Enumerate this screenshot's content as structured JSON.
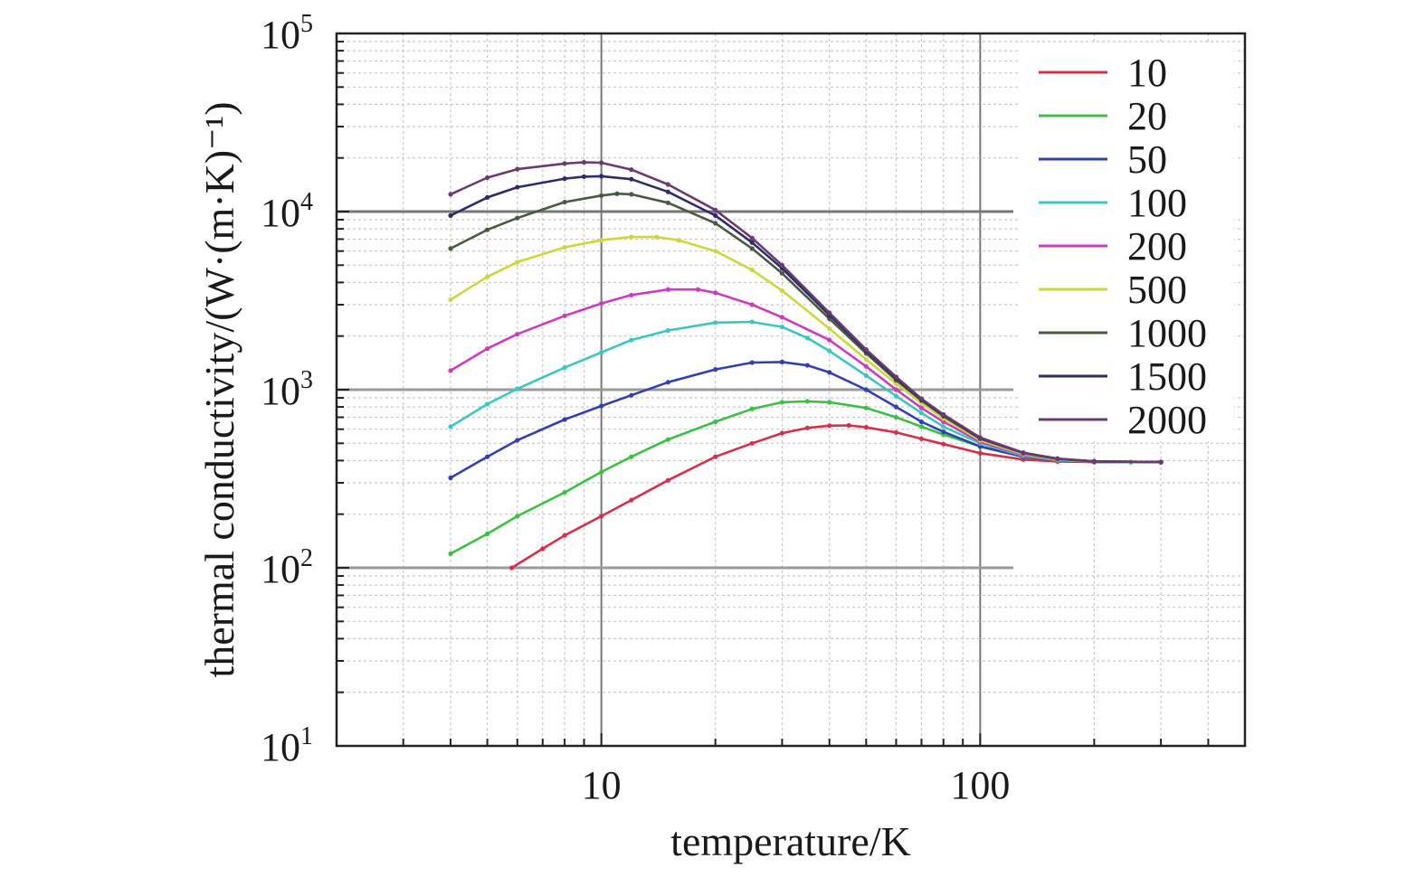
{
  "chart_data": {
    "type": "line",
    "xlabel": "temperature/K",
    "ylabel": "thermal conductivity/(W·(m·K)⁻¹)",
    "x_scale": "log",
    "y_scale": "log",
    "xlim": [
      2,
      500
    ],
    "ylim": [
      10,
      100000
    ],
    "grid": true,
    "legend_position": "top-right",
    "x_ticks": [
      {
        "value": 10,
        "label": "10"
      },
      {
        "value": 100,
        "label": "100"
      }
    ],
    "y_ticks": [
      {
        "value": 10,
        "base": "10",
        "exp": "1"
      },
      {
        "value": 100,
        "base": "10",
        "exp": "2"
      },
      {
        "value": 1000,
        "base": "10",
        "exp": "3"
      },
      {
        "value": 10000,
        "base": "10",
        "exp": "4"
      },
      {
        "value": 100000,
        "base": "10",
        "exp": "5"
      }
    ],
    "series": [
      {
        "name": "10",
        "color": "#d62f4a",
        "points": [
          [
            5.8,
            100
          ],
          [
            7,
            128
          ],
          [
            8,
            152
          ],
          [
            10,
            195
          ],
          [
            12,
            240
          ],
          [
            15,
            310
          ],
          [
            20,
            420
          ],
          [
            25,
            500
          ],
          [
            30,
            570
          ],
          [
            35,
            610
          ],
          [
            40,
            628
          ],
          [
            45,
            630
          ],
          [
            50,
            615
          ],
          [
            60,
            575
          ],
          [
            70,
            530
          ],
          [
            80,
            495
          ],
          [
            100,
            440
          ],
          [
            130,
            405
          ],
          [
            160,
            395
          ],
          [
            200,
            392
          ],
          [
            250,
            392
          ],
          [
            300,
            392
          ]
        ]
      },
      {
        "name": "20",
        "color": "#3cc043",
        "points": [
          [
            4,
            120
          ],
          [
            5,
            155
          ],
          [
            6,
            195
          ],
          [
            8,
            265
          ],
          [
            10,
            345
          ],
          [
            12,
            420
          ],
          [
            15,
            525
          ],
          [
            20,
            660
          ],
          [
            25,
            780
          ],
          [
            30,
            850
          ],
          [
            35,
            860
          ],
          [
            40,
            850
          ],
          [
            50,
            790
          ],
          [
            60,
            700
          ],
          [
            70,
            620
          ],
          [
            80,
            560
          ],
          [
            100,
            480
          ],
          [
            130,
            420
          ],
          [
            160,
            400
          ],
          [
            200,
            393
          ],
          [
            250,
            392
          ],
          [
            300,
            392
          ]
        ]
      },
      {
        "name": "50",
        "color": "#3340b0",
        "points": [
          [
            4,
            320
          ],
          [
            5,
            420
          ],
          [
            6,
            520
          ],
          [
            8,
            680
          ],
          [
            10,
            810
          ],
          [
            12,
            930
          ],
          [
            15,
            1100
          ],
          [
            20,
            1300
          ],
          [
            25,
            1420
          ],
          [
            30,
            1430
          ],
          [
            35,
            1370
          ],
          [
            40,
            1250
          ],
          [
            50,
            1000
          ],
          [
            60,
            800
          ],
          [
            70,
            660
          ],
          [
            80,
            580
          ],
          [
            100,
            480
          ],
          [
            130,
            420
          ],
          [
            160,
            400
          ],
          [
            200,
            393
          ],
          [
            300,
            392
          ]
        ]
      },
      {
        "name": "100",
        "color": "#3cc6c0",
        "points": [
          [
            4,
            620
          ],
          [
            5,
            830
          ],
          [
            6,
            1010
          ],
          [
            8,
            1330
          ],
          [
            10,
            1620
          ],
          [
            12,
            1900
          ],
          [
            15,
            2150
          ],
          [
            20,
            2380
          ],
          [
            25,
            2400
          ],
          [
            30,
            2250
          ],
          [
            35,
            1950
          ],
          [
            40,
            1650
          ],
          [
            50,
            1200
          ],
          [
            60,
            920
          ],
          [
            70,
            740
          ],
          [
            80,
            620
          ],
          [
            100,
            500
          ],
          [
            130,
            425
          ],
          [
            160,
            402
          ],
          [
            200,
            394
          ],
          [
            300,
            392
          ]
        ]
      },
      {
        "name": "200",
        "color": "#cc3cc0",
        "points": [
          [
            4,
            1280
          ],
          [
            5,
            1700
          ],
          [
            6,
            2050
          ],
          [
            8,
            2600
          ],
          [
            10,
            3050
          ],
          [
            12,
            3400
          ],
          [
            15,
            3650
          ],
          [
            18,
            3650
          ],
          [
            20,
            3500
          ],
          [
            25,
            3000
          ],
          [
            30,
            2550
          ],
          [
            40,
            1900
          ],
          [
            50,
            1350
          ],
          [
            60,
            1000
          ],
          [
            70,
            790
          ],
          [
            80,
            660
          ],
          [
            100,
            510
          ],
          [
            130,
            430
          ],
          [
            160,
            405
          ],
          [
            200,
            395
          ],
          [
            300,
            392
          ]
        ]
      },
      {
        "name": "500",
        "color": "#cbd83c",
        "points": [
          [
            4,
            3200
          ],
          [
            5,
            4300
          ],
          [
            6,
            5200
          ],
          [
            8,
            6300
          ],
          [
            10,
            6900
          ],
          [
            12,
            7200
          ],
          [
            14,
            7200
          ],
          [
            16,
            6900
          ],
          [
            20,
            6000
          ],
          [
            25,
            4700
          ],
          [
            30,
            3600
          ],
          [
            40,
            2200
          ],
          [
            50,
            1480
          ],
          [
            60,
            1080
          ],
          [
            70,
            840
          ],
          [
            80,
            690
          ],
          [
            100,
            520
          ],
          [
            130,
            435
          ],
          [
            160,
            405
          ],
          [
            200,
            395
          ],
          [
            300,
            392
          ]
        ]
      },
      {
        "name": "1000",
        "color": "#4a5a40",
        "points": [
          [
            4,
            6200
          ],
          [
            5,
            7900
          ],
          [
            6,
            9200
          ],
          [
            8,
            11300
          ],
          [
            10,
            12300
          ],
          [
            11,
            12600
          ],
          [
            12,
            12500
          ],
          [
            15,
            11200
          ],
          [
            20,
            8600
          ],
          [
            25,
            6200
          ],
          [
            30,
            4500
          ],
          [
            40,
            2500
          ],
          [
            50,
            1600
          ],
          [
            60,
            1130
          ],
          [
            70,
            870
          ],
          [
            80,
            710
          ],
          [
            100,
            530
          ],
          [
            130,
            440
          ],
          [
            160,
            408
          ],
          [
            200,
            396
          ],
          [
            300,
            392
          ]
        ]
      },
      {
        "name": "1500",
        "color": "#2d2d6a",
        "points": [
          [
            4,
            9500
          ],
          [
            5,
            12000
          ],
          [
            6,
            13700
          ],
          [
            8,
            15300
          ],
          [
            9,
            15700
          ],
          [
            10,
            15800
          ],
          [
            12,
            15200
          ],
          [
            15,
            12900
          ],
          [
            20,
            9500
          ],
          [
            25,
            6700
          ],
          [
            30,
            4800
          ],
          [
            40,
            2620
          ],
          [
            50,
            1650
          ],
          [
            60,
            1160
          ],
          [
            70,
            880
          ],
          [
            80,
            720
          ],
          [
            100,
            535
          ],
          [
            130,
            442
          ],
          [
            160,
            410
          ],
          [
            200,
            396
          ],
          [
            300,
            392
          ]
        ]
      },
      {
        "name": "2000",
        "color": "#6a3a70",
        "points": [
          [
            4,
            12500
          ],
          [
            5,
            15500
          ],
          [
            6,
            17300
          ],
          [
            8,
            18600
          ],
          [
            9,
            18900
          ],
          [
            10,
            18800
          ],
          [
            12,
            17200
          ],
          [
            15,
            14200
          ],
          [
            20,
            10200
          ],
          [
            25,
            7100
          ],
          [
            30,
            5000
          ],
          [
            40,
            2700
          ],
          [
            50,
            1680
          ],
          [
            60,
            1180
          ],
          [
            70,
            890
          ],
          [
            80,
            725
          ],
          [
            100,
            538
          ],
          [
            130,
            443
          ],
          [
            160,
            410
          ],
          [
            200,
            396
          ],
          [
            300,
            392
          ]
        ]
      }
    ]
  }
}
